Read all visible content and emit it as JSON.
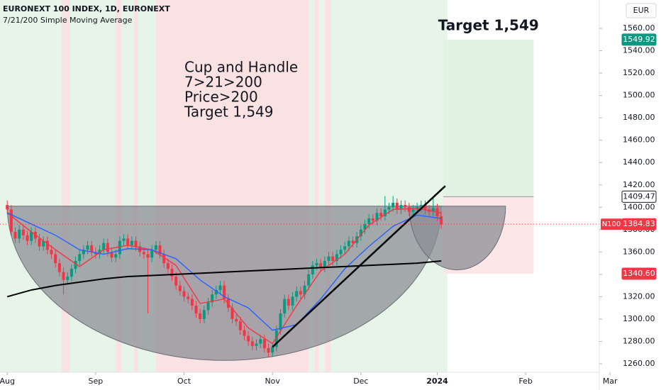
{
  "chart_data": {
    "type": "candlestick",
    "title": "EURONEXT 100 INDEX, 1D, EURONEXT",
    "subtitle": "7/21/200 Simple Moving Average",
    "currency": "EUR",
    "up_color": "#089981",
    "down_color": "#f23645",
    "x": [
      0,
      1,
      2,
      3,
      4,
      5,
      6,
      7,
      8,
      9,
      10,
      11,
      12,
      13,
      14,
      15,
      16,
      17,
      18,
      19,
      20,
      21,
      22,
      23,
      24,
      25,
      26,
      27,
      28,
      29,
      30,
      31,
      32,
      33,
      34,
      35,
      36,
      37,
      38,
      39,
      40,
      41,
      42,
      43,
      44,
      45,
      46,
      47,
      48,
      49,
      50,
      51,
      52,
      53,
      54,
      55,
      56,
      57,
      58,
      59,
      60,
      61,
      62,
      63,
      64,
      65,
      66,
      67,
      68,
      69,
      70,
      71,
      72,
      73,
      74,
      75,
      76,
      77,
      78,
      79,
      80,
      81,
      82,
      83,
      84,
      85,
      86,
      87,
      88,
      89,
      90,
      91,
      92,
      93,
      94,
      95,
      96,
      97,
      98,
      99,
      100,
      101,
      102,
      103,
      104,
      105,
      106,
      107,
      108
    ],
    "open": [
      1402,
      1398,
      1378,
      1372,
      1380,
      1375,
      1370,
      1378,
      1372,
      1365,
      1370,
      1362,
      1358,
      1350,
      1342,
      1335,
      1338,
      1345,
      1352,
      1358,
      1362,
      1366,
      1360,
      1358,
      1362,
      1368,
      1360,
      1355,
      1358,
      1370,
      1372,
      1366,
      1370,
      1365,
      1360,
      1358,
      1355,
      1362,
      1366,
      1358,
      1350,
      1345,
      1338,
      1330,
      1325,
      1320,
      1318,
      1312,
      1305,
      1300,
      1308,
      1315,
      1322,
      1326,
      1330,
      1318,
      1310,
      1300,
      1298,
      1290,
      1285,
      1280,
      1276,
      1278,
      1282,
      1274,
      1270,
      1275,
      1290,
      1305,
      1318,
      1312,
      1320,
      1325,
      1322,
      1330,
      1340,
      1348,
      1350,
      1346,
      1352,
      1356,
      1352,
      1358,
      1362,
      1365,
      1370,
      1368,
      1374,
      1380,
      1385,
      1390,
      1388,
      1395,
      1392,
      1398,
      1400,
      1404,
      1398,
      1402,
      1400,
      1396,
      1398,
      1400,
      1402,
      1398,
      1396,
      1399,
      1392
    ],
    "high": [
      1406,
      1402,
      1382,
      1384,
      1384,
      1379,
      1382,
      1382,
      1376,
      1374,
      1374,
      1366,
      1362,
      1354,
      1346,
      1342,
      1349,
      1356,
      1362,
      1366,
      1370,
      1370,
      1364,
      1366,
      1372,
      1372,
      1364,
      1362,
      1374,
      1376,
      1376,
      1374,
      1374,
      1369,
      1364,
      1362,
      1366,
      1370,
      1370,
      1362,
      1354,
      1349,
      1342,
      1334,
      1329,
      1324,
      1322,
      1316,
      1309,
      1312,
      1319,
      1326,
      1330,
      1334,
      1334,
      1322,
      1314,
      1304,
      1302,
      1294,
      1289,
      1284,
      1282,
      1286,
      1286,
      1278,
      1279,
      1294,
      1309,
      1322,
      1322,
      1324,
      1329,
      1329,
      1334,
      1344,
      1352,
      1354,
      1354,
      1356,
      1360,
      1360,
      1362,
      1366,
      1369,
      1374,
      1374,
      1378,
      1384,
      1389,
      1394,
      1394,
      1399,
      1399,
      1410,
      1404,
      1410,
      1408,
      1406,
      1406,
      1404,
      1402,
      1404,
      1406,
      1406,
      1402,
      1410,
      1403,
      1396
    ],
    "low": [
      1394,
      1374,
      1368,
      1368,
      1371,
      1366,
      1366,
      1368,
      1361,
      1361,
      1358,
      1354,
      1346,
      1338,
      1322,
      1331,
      1334,
      1341,
      1348,
      1354,
      1358,
      1356,
      1354,
      1354,
      1358,
      1356,
      1351,
      1351,
      1354,
      1366,
      1362,
      1362,
      1361,
      1356,
      1354,
      1305,
      1351,
      1358,
      1354,
      1346,
      1341,
      1334,
      1326,
      1321,
      1316,
      1314,
      1308,
      1301,
      1296,
      1296,
      1304,
      1311,
      1318,
      1322,
      1314,
      1306,
      1296,
      1294,
      1286,
      1281,
      1276,
      1272,
      1272,
      1274,
      1270,
      1266,
      1266,
      1271,
      1286,
      1301,
      1308,
      1308,
      1316,
      1318,
      1318,
      1326,
      1336,
      1344,
      1342,
      1342,
      1348,
      1348,
      1348,
      1354,
      1358,
      1361,
      1364,
      1364,
      1370,
      1376,
      1381,
      1384,
      1384,
      1388,
      1388,
      1394,
      1396,
      1394,
      1394,
      1396,
      1392,
      1392,
      1394,
      1396,
      1394,
      1392,
      1392,
      1388,
      1381
    ],
    "close": [
      1398,
      1378,
      1372,
      1380,
      1375,
      1370,
      1378,
      1372,
      1365,
      1370,
      1362,
      1358,
      1350,
      1342,
      1335,
      1338,
      1345,
      1352,
      1358,
      1362,
      1366,
      1360,
      1358,
      1362,
      1368,
      1360,
      1355,
      1358,
      1370,
      1372,
      1366,
      1370,
      1365,
      1360,
      1358,
      1355,
      1362,
      1366,
      1358,
      1350,
      1345,
      1338,
      1330,
      1325,
      1320,
      1318,
      1312,
      1305,
      1300,
      1308,
      1315,
      1322,
      1326,
      1330,
      1318,
      1310,
      1300,
      1298,
      1290,
      1285,
      1280,
      1276,
      1278,
      1282,
      1274,
      1270,
      1275,
      1290,
      1305,
      1318,
      1312,
      1320,
      1325,
      1322,
      1330,
      1340,
      1348,
      1350,
      1346,
      1352,
      1356,
      1352,
      1358,
      1362,
      1365,
      1370,
      1368,
      1374,
      1380,
      1385,
      1390,
      1388,
      1395,
      1392,
      1398,
      1400,
      1404,
      1398,
      1402,
      1400,
      1396,
      1398,
      1400,
      1402,
      1398,
      1396,
      1399,
      1392,
      1384.83
    ],
    "symbol": "N100",
    "series": [
      {
        "color": "#f23645",
        "x": [
          0,
          6,
          12,
          18,
          24,
          30,
          36,
          42,
          48,
          54,
          60,
          66,
          72,
          78,
          84,
          90,
          96,
          102,
          108
        ],
        "values": [
          1395,
          1378,
          1362,
          1347,
          1362,
          1366,
          1362,
          1348,
          1314,
          1318,
          1292,
          1278,
          1312,
          1343,
          1358,
          1384,
          1398,
          1399,
          1395
        ]
      },
      {
        "color": "#2962ff",
        "x": [
          0,
          6,
          12,
          18,
          24,
          30,
          36,
          42,
          48,
          54,
          60,
          66,
          72,
          78,
          84,
          90,
          96,
          102,
          108
        ],
        "values": [
          1395,
          1385,
          1375,
          1362,
          1358,
          1363,
          1362,
          1354,
          1335,
          1320,
          1310,
          1290,
          1295,
          1318,
          1345,
          1365,
          1383,
          1393,
          1390
        ]
      },
      {
        "color": "#000000",
        "x": [
          0,
          6,
          12,
          18,
          24,
          30,
          36,
          42,
          48,
          54,
          60,
          66,
          72,
          78,
          84,
          90,
          96,
          102,
          108
        ],
        "values": [
          1320,
          1326,
          1330,
          1333,
          1336,
          1338,
          1339,
          1340,
          1341,
          1342,
          1343,
          1344,
          1345,
          1346,
          1347,
          1348,
          1349,
          1350,
          1352
        ]
      }
    ],
    "regions": [
      {
        "from": -1.8,
        "to": 13.5,
        "color": "#e6f5e8"
      },
      {
        "from": 13.5,
        "to": 15.5,
        "color": "#fbe2e2"
      },
      {
        "from": 15.5,
        "to": 27,
        "color": "#e6f5e8"
      },
      {
        "from": 27,
        "to": 28.5,
        "color": "#fbe2e2"
      },
      {
        "from": 28.5,
        "to": 31.5,
        "color": "#e6f5e8"
      },
      {
        "from": 31.5,
        "to": 32.5,
        "color": "#fbe2e2"
      },
      {
        "from": 32.5,
        "to": 37,
        "color": "#e6f5e8"
      },
      {
        "from": 37,
        "to": 75,
        "color": "#fbe2e2"
      },
      {
        "from": 75,
        "to": 76.5,
        "color": "#e6f5e8"
      },
      {
        "from": 76.5,
        "to": 77.5,
        "color": "#fbe2e2"
      },
      {
        "from": 77.5,
        "to": 79,
        "color": "#e6f5e8"
      },
      {
        "from": 79,
        "to": 80.5,
        "color": "#fbe2e2"
      },
      {
        "from": 80.5,
        "to": 109.5,
        "color": "#e6f5e8"
      }
    ],
    "cup": {
      "x": [
        0,
        55,
        108
      ],
      "y": [
        1401,
        1263,
        1401
      ],
      "color": "#8c8e96"
    },
    "handle": {
      "x": [
        100,
        112,
        124
      ],
      "y": [
        1401,
        1344,
        1401
      ],
      "color": "#8c8e96"
    },
    "trend_line": {
      "x": [
        66,
        109
      ],
      "y": [
        1275,
        1419
      ],
      "color": "#000000"
    },
    "note": [
      "Cup and Handle",
      "7>21>200",
      "Price>200",
      "Target 1,549"
    ],
    "target_box": {
      "label": "Target 1,549",
      "x": [
        108.5,
        131
      ],
      "entry": 1409.47,
      "target": 1549.92,
      "stop": {
        "value": 1340.6,
        "label": "1340.60"
      },
      "profit_color": "#e3f3e3",
      "loss_color": "#fde6e6"
    },
    "xlim": [
      -1.8,
      153.5
    ],
    "ylim": [
      1252.4,
      1585.4
    ],
    "xticks": [
      {
        "value": 0,
        "label": "Aug"
      },
      {
        "value": 22,
        "label": "Sep"
      },
      {
        "value": 44,
        "label": "Oct"
      },
      {
        "value": 66,
        "label": "Nov"
      },
      {
        "value": 88,
        "label": "Dec"
      },
      {
        "value": 107,
        "label": "2024",
        "bold": true
      },
      {
        "value": 129,
        "label": "Feb"
      },
      {
        "value": 150,
        "label": "Mar"
      }
    ],
    "yticks": [
      {
        "value": 1260,
        "label": "1260.00"
      },
      {
        "value": 1280,
        "label": "1280.00"
      },
      {
        "value": 1300,
        "label": "1300.00"
      },
      {
        "value": 1320,
        "label": "1320.00"
      },
      {
        "value": 1340,
        "label": "1340.00"
      },
      {
        "value": 1360,
        "label": "1360.00"
      },
      {
        "value": 1380,
        "label": "1380.00"
      },
      {
        "value": 1400,
        "label": "1400.00"
      },
      {
        "value": 1420,
        "label": "1420.00"
      },
      {
        "value": 1440,
        "label": "1440.00"
      },
      {
        "value": 1460,
        "label": "1460.00"
      },
      {
        "value": 1480,
        "label": "1480.00"
      },
      {
        "value": 1500,
        "label": "1500.00"
      },
      {
        "value": 1520,
        "label": "1520.00"
      },
      {
        "value": 1540,
        "label": "1540.00"
      },
      {
        "value": 1560,
        "label": "1560.00"
      }
    ]
  }
}
